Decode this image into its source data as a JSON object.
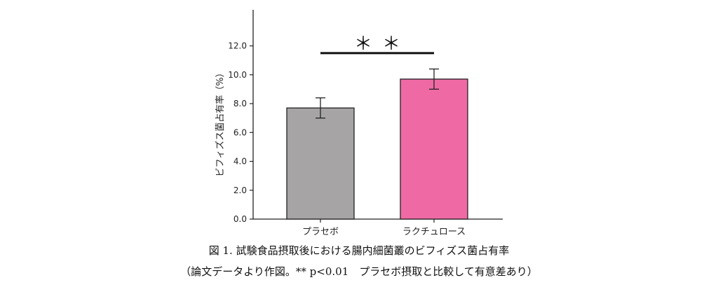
{
  "chart_data": {
    "type": "bar",
    "title": "",
    "xlabel": "",
    "ylabel": "ビフィズス菌占有率（%）",
    "categories": [
      "プラセボ",
      "ラクチュロース"
    ],
    "values": [
      7.7,
      9.7
    ],
    "errors": [
      0.7,
      0.7
    ],
    "colors": [
      "#a6a4a5",
      "#ef6aa5"
    ],
    "ylim": [
      0,
      14.5
    ],
    "yticks": [
      0,
      2,
      4,
      6,
      8,
      10,
      12
    ],
    "ytick_labels": [
      "0.0",
      "2.0",
      "4.0",
      "6.0",
      "8.0",
      "10.0",
      "12.0"
    ],
    "grid": false,
    "significance": {
      "between": [
        0,
        1
      ],
      "label": "＊＊",
      "y": 11.5
    }
  },
  "caption": {
    "line1": "図 1. 試験食品摂取後における腸内細菌叢のビフィズス菌占有率",
    "line2": "（論文データより作図。** p<0.01　プラセボ摂取と比較して有意差あり）"
  }
}
